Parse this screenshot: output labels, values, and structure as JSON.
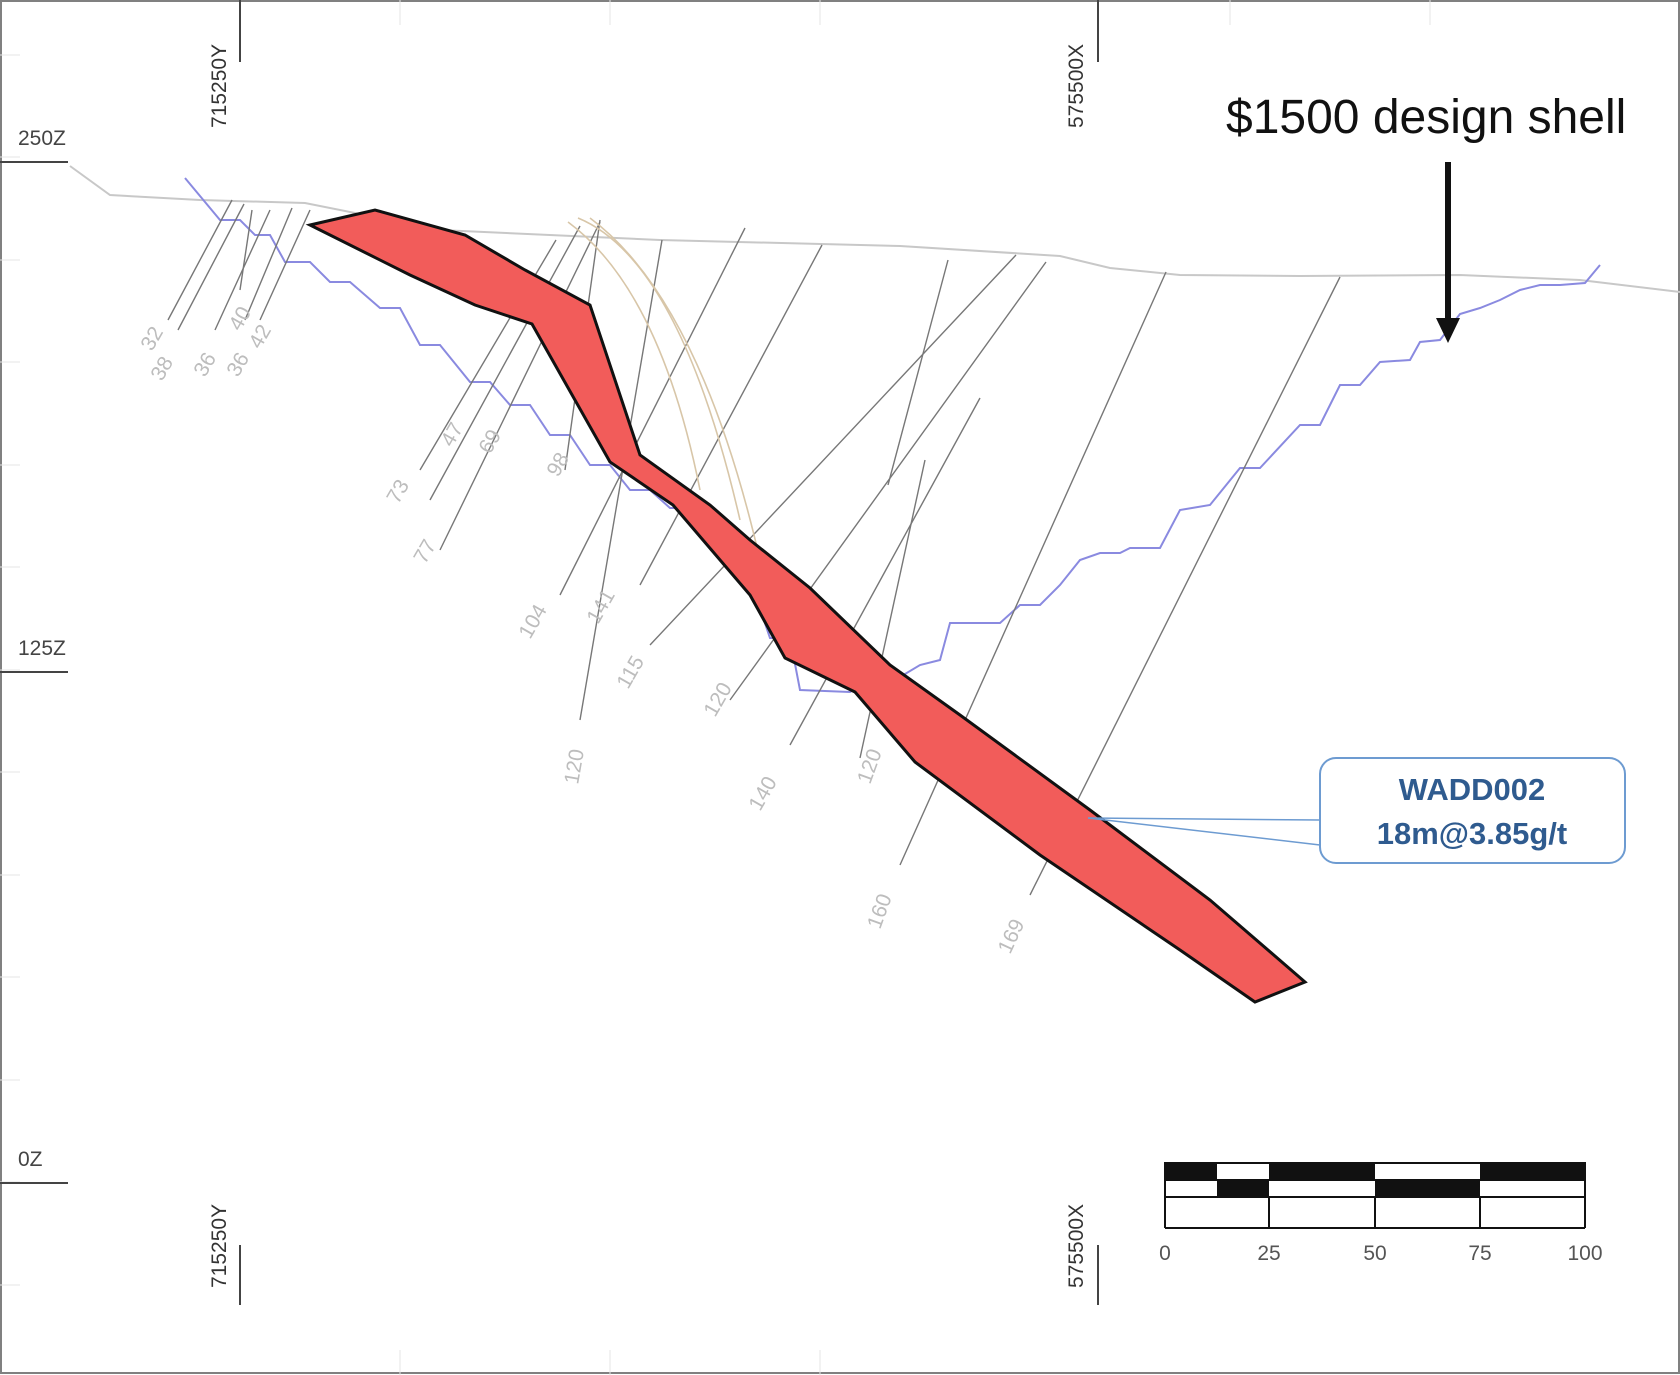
{
  "elevations": [
    "250Z",
    "125Z",
    "0Z"
  ],
  "northing_label": "715250Y",
  "easting_label": "575500X",
  "shell_annotation": "$1500 design shell",
  "callout": {
    "hole_id": "WADD002",
    "intercept": "18m@3.85g/t"
  },
  "drillhole_depths": [
    "32",
    "38",
    "36",
    "36",
    "40",
    "42",
    "47",
    "73",
    "69",
    "77",
    "98",
    "104",
    "141",
    "115",
    "120",
    "120",
    "140",
    "120",
    "160",
    "169"
  ],
  "scale_bar": {
    "labels": [
      "0",
      "25",
      "50",
      "75",
      "100"
    ]
  },
  "colors": {
    "orebody_fill": "#f25c5a",
    "orebody_outline": "#111111",
    "pit_shell": "#8a8ae0",
    "topography": "#c8c8c8",
    "drillhole": "#777777",
    "callout_border": "#6d9bd1",
    "callout_text": "#2f5b8f"
  }
}
